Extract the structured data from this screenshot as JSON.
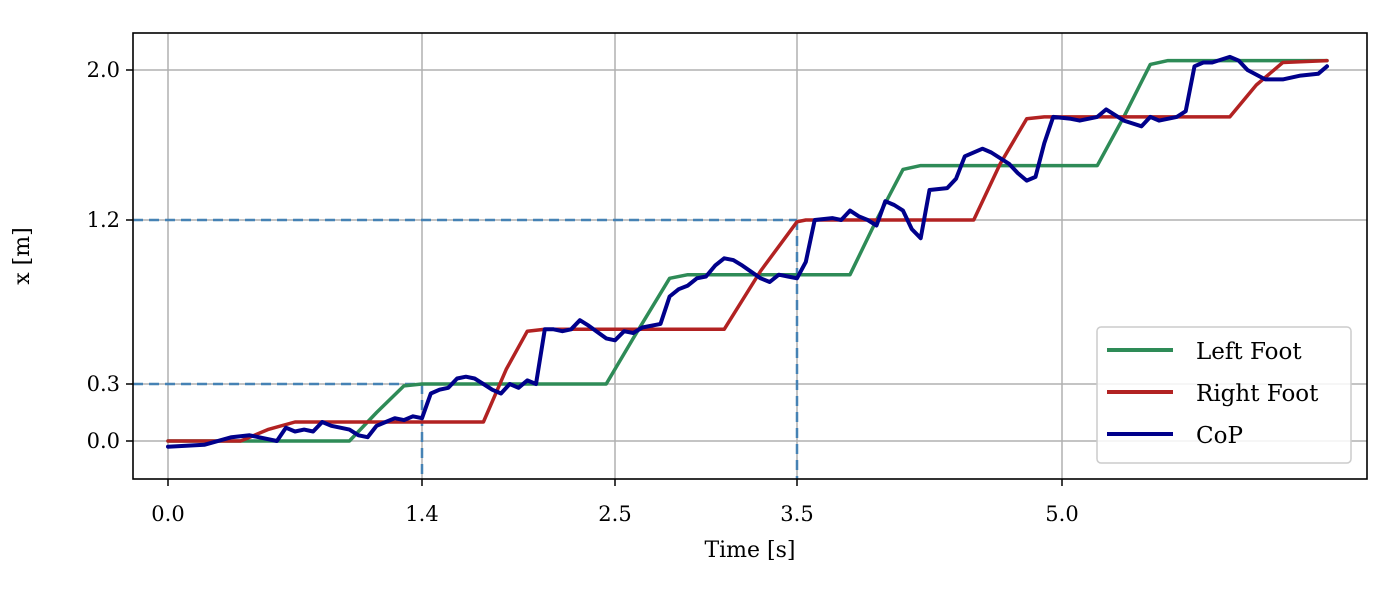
{
  "chart_data": {
    "type": "line",
    "title": "",
    "xlabel": "Time [s]",
    "ylabel": "x [m]",
    "xlim": [
      -0.19,
      6.72
    ],
    "ylim": [
      -0.2,
      2.2
    ],
    "grid": true,
    "legend_position": "lower right",
    "x_ticks": [
      0.0,
      1.4,
      2.5,
      3.5,
      5.0
    ],
    "x_tick_labels": [
      "0.0",
      "1.4",
      "2.5",
      "3.5",
      "5.0"
    ],
    "y_ticks": [
      0.0,
      0.3,
      1.2,
      2.0
    ],
    "y_tick_labels": [
      "0.0",
      "0.3",
      "1.2",
      "2.0"
    ],
    "annotations": [
      {
        "type": "dashed-guide",
        "x": 1.4,
        "y": 0.3
      },
      {
        "type": "dashed-guide",
        "x": 3.5,
        "y": 1.2
      }
    ],
    "series": [
      {
        "name": "Left Foot",
        "color": "#2e8b57",
        "x": [
          0.0,
          1.0,
          1.15,
          1.3,
          1.4,
          2.45,
          2.6,
          2.8,
          2.9,
          3.8,
          3.95,
          4.1,
          4.2,
          5.2,
          5.35,
          5.5,
          5.6,
          6.5
        ],
        "y": [
          0.0,
          0.0,
          0.15,
          0.29,
          0.3,
          0.3,
          0.55,
          0.88,
          0.9,
          0.9,
          1.2,
          1.47,
          1.49,
          1.49,
          1.75,
          2.03,
          2.05,
          2.05
        ]
      },
      {
        "name": "Right Foot",
        "color": "#b22222",
        "x": [
          0.0,
          0.4,
          0.55,
          0.7,
          0.8,
          1.75,
          1.88,
          2.0,
          2.1,
          3.1,
          3.3,
          3.5,
          3.55,
          4.5,
          4.65,
          4.8,
          4.9,
          5.95,
          6.1,
          6.25,
          6.5
        ],
        "y": [
          0.0,
          0.0,
          0.06,
          0.1,
          0.1,
          0.1,
          0.38,
          0.59,
          0.6,
          0.6,
          0.92,
          1.19,
          1.2,
          1.2,
          1.5,
          1.74,
          1.75,
          1.75,
          1.92,
          2.04,
          2.05
        ]
      },
      {
        "name": "CoP",
        "color": "#00008b",
        "x": [
          0.0,
          0.2,
          0.35,
          0.45,
          0.5,
          0.6,
          0.65,
          0.7,
          0.75,
          0.8,
          0.85,
          0.9,
          0.95,
          1.0,
          1.05,
          1.1,
          1.15,
          1.2,
          1.25,
          1.3,
          1.35,
          1.4,
          1.45,
          1.5,
          1.55,
          1.6,
          1.65,
          1.7,
          1.75,
          1.8,
          1.85,
          1.9,
          1.95,
          2.0,
          2.05,
          2.1,
          2.15,
          2.2,
          2.25,
          2.3,
          2.35,
          2.45,
          2.5,
          2.55,
          2.6,
          2.65,
          2.75,
          2.8,
          2.85,
          2.9,
          2.95,
          3.0,
          3.05,
          3.1,
          3.15,
          3.2,
          3.3,
          3.35,
          3.4,
          3.45,
          3.5,
          3.55,
          3.6,
          3.7,
          3.75,
          3.8,
          3.85,
          3.9,
          3.95,
          4.0,
          4.05,
          4.1,
          4.15,
          4.2,
          4.25,
          4.35,
          4.4,
          4.45,
          4.55,
          4.6,
          4.7,
          4.75,
          4.8,
          4.85,
          4.9,
          4.95,
          5.05,
          5.1,
          5.2,
          5.25,
          5.35,
          5.45,
          5.5,
          5.55,
          5.65,
          5.7,
          5.75,
          5.8,
          5.85,
          5.95,
          6.0,
          6.05,
          6.15,
          6.25,
          6.35,
          6.45,
          6.5
        ],
        "y": [
          -0.03,
          -0.02,
          0.02,
          0.03,
          0.02,
          0.0,
          0.07,
          0.05,
          0.06,
          0.05,
          0.1,
          0.08,
          0.07,
          0.06,
          0.03,
          0.02,
          0.08,
          0.1,
          0.12,
          0.11,
          0.13,
          0.12,
          0.25,
          0.27,
          0.28,
          0.33,
          0.34,
          0.33,
          0.3,
          0.27,
          0.25,
          0.3,
          0.28,
          0.32,
          0.3,
          0.6,
          0.6,
          0.59,
          0.6,
          0.65,
          0.62,
          0.55,
          0.54,
          0.59,
          0.58,
          0.61,
          0.63,
          0.78,
          0.82,
          0.84,
          0.88,
          0.89,
          0.95,
          0.99,
          0.98,
          0.95,
          0.88,
          0.86,
          0.9,
          0.89,
          0.88,
          0.97,
          1.2,
          1.21,
          1.2,
          1.25,
          1.22,
          1.2,
          1.17,
          1.3,
          1.28,
          1.25,
          1.15,
          1.1,
          1.36,
          1.37,
          1.42,
          1.54,
          1.58,
          1.56,
          1.5,
          1.45,
          1.41,
          1.43,
          1.61,
          1.75,
          1.74,
          1.73,
          1.75,
          1.79,
          1.73,
          1.7,
          1.75,
          1.73,
          1.75,
          1.78,
          2.02,
          2.04,
          2.04,
          2.07,
          2.05,
          2.0,
          1.95,
          1.95,
          1.97,
          1.98,
          2.02
        ]
      }
    ]
  },
  "axes": {
    "xlabel": "Time [s]",
    "ylabel": "x [m]"
  },
  "legend": {
    "items": [
      {
        "label": "Left Foot",
        "color": "#2e8b57"
      },
      {
        "label": "Right Foot",
        "color": "#b22222"
      },
      {
        "label": "CoP",
        "color": "#00008b"
      }
    ]
  },
  "colors": {
    "grid": "#b0b0b0",
    "guide": "#4682b4",
    "frame": "#000000"
  }
}
